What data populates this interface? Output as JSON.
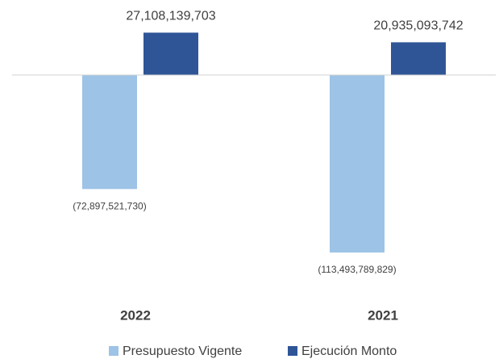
{
  "chart_data": {
    "type": "bar",
    "categories": [
      "2022",
      "2021"
    ],
    "series": [
      {
        "name": "Presupuesto Vigente",
        "color": "#9dc3e6",
        "values": [
          -72897521730,
          -113493789829
        ],
        "value_labels": [
          "(72,897,521,730)",
          "(113,493,789,829)"
        ]
      },
      {
        "name": "Ejecución Monto",
        "color": "#2f5597",
        "values": [
          27108139703,
          20935093742
        ],
        "value_labels": [
          "27,108,139,703",
          "20,935,093,742"
        ]
      }
    ],
    "legend": "bottom"
  }
}
